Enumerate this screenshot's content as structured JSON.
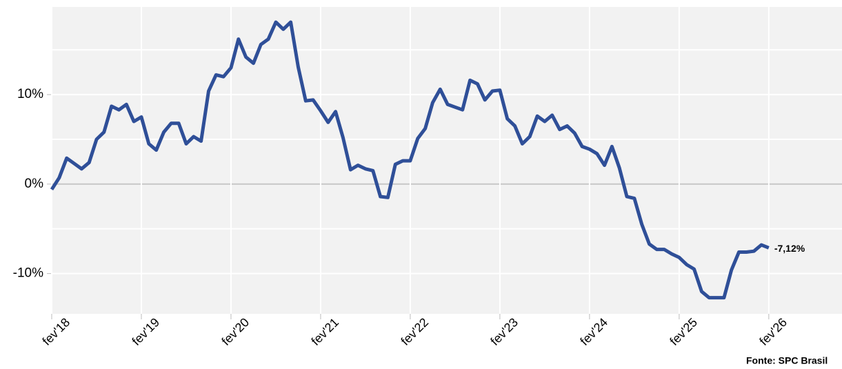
{
  "chart_data": {
    "type": "line",
    "categories": [
      "fev'18",
      null,
      null,
      null,
      null,
      null,
      null,
      null,
      null,
      null,
      null,
      null,
      "fev'19",
      null,
      null,
      null,
      null,
      null,
      null,
      null,
      null,
      null,
      null,
      null,
      "fev'20",
      null,
      null,
      null,
      null,
      null,
      null,
      null,
      null,
      null,
      null,
      null,
      "fev'21",
      null,
      null,
      null,
      null,
      null,
      null,
      null,
      null,
      null,
      null,
      null,
      "fev'22",
      null,
      null,
      null,
      null,
      null,
      null,
      null,
      null,
      null,
      null,
      null,
      "fev'23",
      null,
      null,
      null,
      null,
      null,
      null,
      null,
      null,
      null,
      null,
      null,
      "fev'24",
      null,
      null,
      null,
      null,
      null,
      null,
      null,
      null,
      null,
      null,
      null,
      "fev'25",
      null,
      null,
      null,
      null,
      null,
      null,
      null,
      null,
      null,
      null,
      null,
      "fev'26"
    ],
    "series": [
      {
        "color": "#2f4f98",
        "values": [
          -0.6,
          0.7,
          2.9,
          2.3,
          1.7,
          2.4,
          5.0,
          5.8,
          8.7,
          8.3,
          8.9,
          7.0,
          7.5,
          4.5,
          3.8,
          5.8,
          6.8,
          6.8,
          4.5,
          5.3,
          4.8,
          10.4,
          12.2,
          12.0,
          13.0,
          16.2,
          14.2,
          13.5,
          15.6,
          16.2,
          18.1,
          17.3,
          18.1,
          13.1,
          9.3,
          9.4,
          8.2,
          6.9,
          8.1,
          5.2,
          1.6,
          2.1,
          1.7,
          1.5,
          -1.4,
          -1.5,
          2.2,
          2.6,
          2.6,
          5.1,
          6.2,
          9.1,
          10.6,
          8.9,
          8.6,
          8.3,
          11.6,
          11.2,
          9.4,
          10.4,
          10.5,
          7.3,
          6.5,
          4.5,
          5.3,
          7.6,
          7.0,
          7.7,
          6.1,
          6.5,
          5.7,
          4.2,
          3.9,
          3.4,
          2.1,
          4.2,
          1.8,
          -1.4,
          -1.6,
          -4.5,
          -6.7,
          -7.3,
          -7.3,
          -7.8,
          -8.2,
          -9.0,
          -9.5,
          -12.0,
          -12.7,
          -12.7,
          -12.7,
          -9.6,
          -7.6,
          -7.6,
          -7.5,
          -6.8,
          -7.12
        ],
        "last_value_label": "-7,12%"
      }
    ],
    "xlim": [
      0,
      105.8
    ],
    "ylim": [
      -14.5,
      19.8
    ],
    "yticks": [
      {
        "value": -10,
        "label": "-10%"
      },
      {
        "value": 0,
        "label": "0%"
      },
      {
        "value": 10,
        "label": "10%"
      }
    ],
    "minor_grid": [
      -5,
      5,
      15
    ],
    "grid": true,
    "source": "Fonte: SPC Brasil"
  }
}
